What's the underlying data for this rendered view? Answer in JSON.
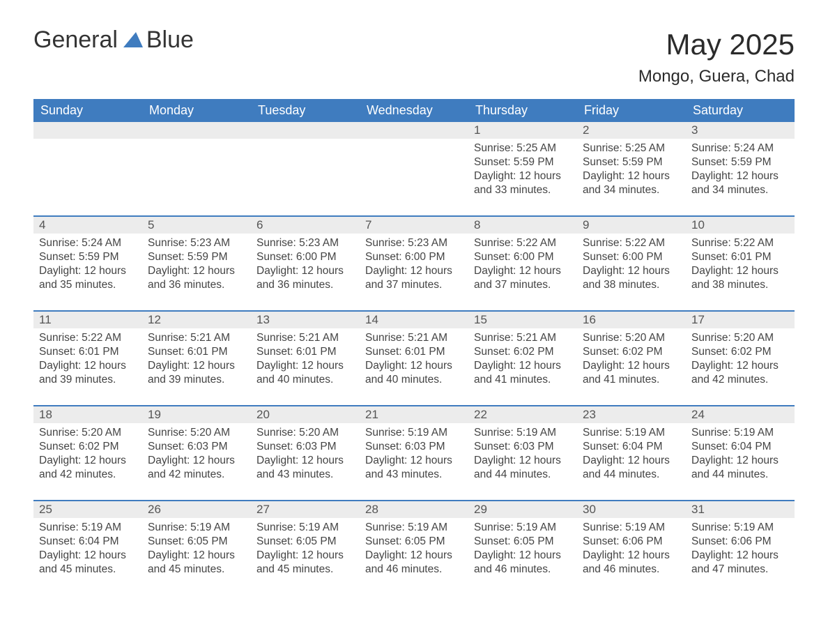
{
  "logo": {
    "word1": "General",
    "word2": "Blue"
  },
  "title": "May 2025",
  "location": "Mongo, Guera, Chad",
  "colors": {
    "header_bg": "#3f7cbf",
    "header_fg": "#ffffff",
    "daynum_bg": "#ececec",
    "text": "#444444",
    "accent": "#3f7cbf"
  },
  "weekdays": [
    "Sunday",
    "Monday",
    "Tuesday",
    "Wednesday",
    "Thursday",
    "Friday",
    "Saturday"
  ],
  "weeks": [
    [
      null,
      null,
      null,
      null,
      {
        "n": "1",
        "sunrise": "5:25 AM",
        "sunset": "5:59 PM",
        "day_h": "12",
        "day_m": "33"
      },
      {
        "n": "2",
        "sunrise": "5:25 AM",
        "sunset": "5:59 PM",
        "day_h": "12",
        "day_m": "34"
      },
      {
        "n": "3",
        "sunrise": "5:24 AM",
        "sunset": "5:59 PM",
        "day_h": "12",
        "day_m": "34"
      }
    ],
    [
      {
        "n": "4",
        "sunrise": "5:24 AM",
        "sunset": "5:59 PM",
        "day_h": "12",
        "day_m": "35"
      },
      {
        "n": "5",
        "sunrise": "5:23 AM",
        "sunset": "5:59 PM",
        "day_h": "12",
        "day_m": "36"
      },
      {
        "n": "6",
        "sunrise": "5:23 AM",
        "sunset": "6:00 PM",
        "day_h": "12",
        "day_m": "36"
      },
      {
        "n": "7",
        "sunrise": "5:23 AM",
        "sunset": "6:00 PM",
        "day_h": "12",
        "day_m": "37"
      },
      {
        "n": "8",
        "sunrise": "5:22 AM",
        "sunset": "6:00 PM",
        "day_h": "12",
        "day_m": "37"
      },
      {
        "n": "9",
        "sunrise": "5:22 AM",
        "sunset": "6:00 PM",
        "day_h": "12",
        "day_m": "38"
      },
      {
        "n": "10",
        "sunrise": "5:22 AM",
        "sunset": "6:01 PM",
        "day_h": "12",
        "day_m": "38"
      }
    ],
    [
      {
        "n": "11",
        "sunrise": "5:22 AM",
        "sunset": "6:01 PM",
        "day_h": "12",
        "day_m": "39"
      },
      {
        "n": "12",
        "sunrise": "5:21 AM",
        "sunset": "6:01 PM",
        "day_h": "12",
        "day_m": "39"
      },
      {
        "n": "13",
        "sunrise": "5:21 AM",
        "sunset": "6:01 PM",
        "day_h": "12",
        "day_m": "40"
      },
      {
        "n": "14",
        "sunrise": "5:21 AM",
        "sunset": "6:01 PM",
        "day_h": "12",
        "day_m": "40"
      },
      {
        "n": "15",
        "sunrise": "5:21 AM",
        "sunset": "6:02 PM",
        "day_h": "12",
        "day_m": "41"
      },
      {
        "n": "16",
        "sunrise": "5:20 AM",
        "sunset": "6:02 PM",
        "day_h": "12",
        "day_m": "41"
      },
      {
        "n": "17",
        "sunrise": "5:20 AM",
        "sunset": "6:02 PM",
        "day_h": "12",
        "day_m": "42"
      }
    ],
    [
      {
        "n": "18",
        "sunrise": "5:20 AM",
        "sunset": "6:02 PM",
        "day_h": "12",
        "day_m": "42"
      },
      {
        "n": "19",
        "sunrise": "5:20 AM",
        "sunset": "6:03 PM",
        "day_h": "12",
        "day_m": "42"
      },
      {
        "n": "20",
        "sunrise": "5:20 AM",
        "sunset": "6:03 PM",
        "day_h": "12",
        "day_m": "43"
      },
      {
        "n": "21",
        "sunrise": "5:19 AM",
        "sunset": "6:03 PM",
        "day_h": "12",
        "day_m": "43"
      },
      {
        "n": "22",
        "sunrise": "5:19 AM",
        "sunset": "6:03 PM",
        "day_h": "12",
        "day_m": "44"
      },
      {
        "n": "23",
        "sunrise": "5:19 AM",
        "sunset": "6:04 PM",
        "day_h": "12",
        "day_m": "44"
      },
      {
        "n": "24",
        "sunrise": "5:19 AM",
        "sunset": "6:04 PM",
        "day_h": "12",
        "day_m": "44"
      }
    ],
    [
      {
        "n": "25",
        "sunrise": "5:19 AM",
        "sunset": "6:04 PM",
        "day_h": "12",
        "day_m": "45"
      },
      {
        "n": "26",
        "sunrise": "5:19 AM",
        "sunset": "6:05 PM",
        "day_h": "12",
        "day_m": "45"
      },
      {
        "n": "27",
        "sunrise": "5:19 AM",
        "sunset": "6:05 PM",
        "day_h": "12",
        "day_m": "45"
      },
      {
        "n": "28",
        "sunrise": "5:19 AM",
        "sunset": "6:05 PM",
        "day_h": "12",
        "day_m": "46"
      },
      {
        "n": "29",
        "sunrise": "5:19 AM",
        "sunset": "6:05 PM",
        "day_h": "12",
        "day_m": "46"
      },
      {
        "n": "30",
        "sunrise": "5:19 AM",
        "sunset": "6:06 PM",
        "day_h": "12",
        "day_m": "46"
      },
      {
        "n": "31",
        "sunrise": "5:19 AM",
        "sunset": "6:06 PM",
        "day_h": "12",
        "day_m": "47"
      }
    ]
  ],
  "labels": {
    "sunrise": "Sunrise:",
    "sunset": "Sunset:",
    "daylight": "Daylight:",
    "hours": "hours",
    "and": "and",
    "minutes": "minutes."
  }
}
